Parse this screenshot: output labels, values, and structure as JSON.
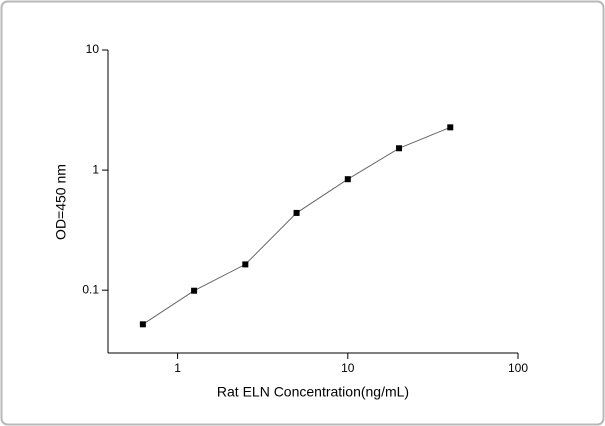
{
  "chart_data": {
    "type": "line",
    "xlabel": "Rat ELN Concentration(ng/mL)",
    "ylabel": "OD=450 nm",
    "x": [
      0.625,
      1.25,
      2.5,
      5,
      10,
      20,
      40
    ],
    "series": [
      {
        "color": "#000000",
        "values": [
          0.052,
          0.099,
          0.164,
          0.44,
          0.84,
          1.52,
          2.27
        ]
      }
    ],
    "xlim": [
      0.39,
      100
    ],
    "ylim": [
      0.03,
      10
    ],
    "xticks": [
      1,
      10,
      100
    ],
    "yticks": [
      0.1,
      1,
      10
    ],
    "xscale": "log",
    "yscale": "log",
    "grid": false
  }
}
